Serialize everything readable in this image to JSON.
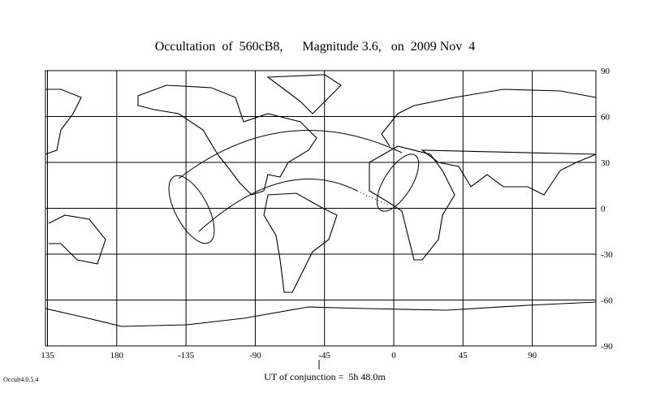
{
  "title": "Occultation  of  560cB8,      Magnitude 3.6,   on  2009 Nov  4",
  "map": {
    "lon_ticks": [
      135,
      180,
      -135,
      -90,
      -45,
      0,
      45,
      90
    ],
    "lat_ticks": [
      90,
      60,
      30,
      0,
      -30,
      -60,
      -90
    ]
  },
  "footer": {
    "conjunction": "UT of conjunction =  5h 48.0m",
    "version": "Occult4.0.5.4"
  }
}
